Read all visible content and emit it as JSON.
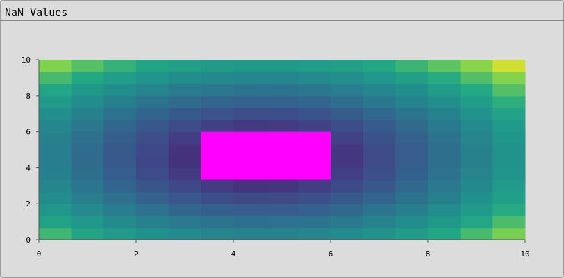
{
  "window": {
    "title": "NaN Values"
  },
  "chart_data": {
    "type": "heatmap",
    "title": "",
    "xlabel": "",
    "ylabel": "",
    "xlim": [
      0,
      10
    ],
    "ylim": [
      0,
      10
    ],
    "x_ticks": [
      "0",
      "2",
      "4",
      "6",
      "8",
      "10"
    ],
    "y_ticks": [
      "0",
      "2",
      "4",
      "6",
      "8",
      "10"
    ],
    "colormap": "viridis",
    "nan_color": "#ff00ff",
    "grid": {
      "cols": 15,
      "rows": 15
    },
    "nan_region": {
      "x": [
        3.333,
        6.0
      ],
      "y": [
        3.333,
        6.0
      ]
    },
    "values_description_note": ""
  }
}
